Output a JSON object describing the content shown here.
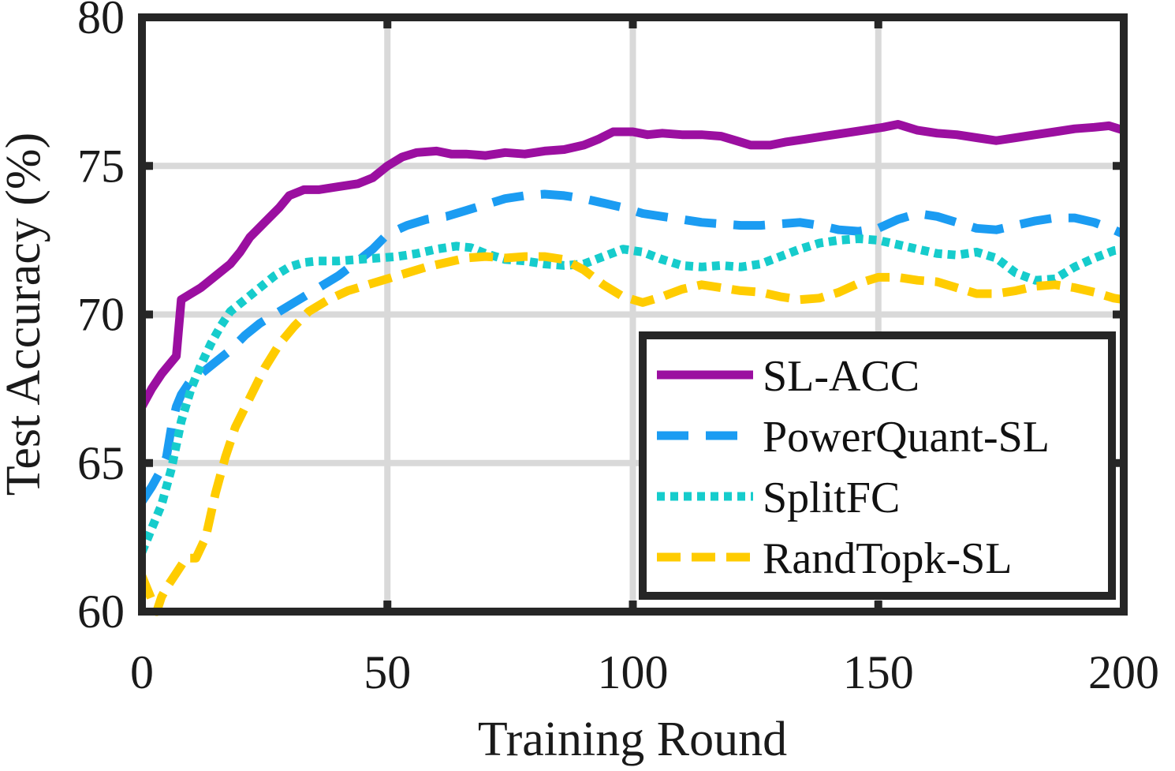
{
  "chart_data": {
    "type": "line",
    "title": "",
    "xlabel": "Training Round",
    "ylabel": "Test Accuracy (%)",
    "xlim": [
      0,
      200
    ],
    "ylim": [
      60,
      80
    ],
    "xticks": [
      0,
      50,
      100,
      150,
      200
    ],
    "yticks": [
      60,
      65,
      70,
      75,
      80
    ],
    "xtick_labels": [
      "0",
      "50",
      "100",
      "150",
      "200"
    ],
    "ytick_labels": [
      "60",
      "65",
      "70",
      "75",
      "80"
    ],
    "grid": true,
    "legend_position": "lower-right",
    "series": [
      {
        "name": "SL-ACC",
        "color": "#9b0fa0",
        "style": "solid",
        "points": [
          [
            0,
            66.9
          ],
          [
            2,
            67.5
          ],
          [
            4,
            68.0
          ],
          [
            6,
            68.4
          ],
          [
            7,
            68.6
          ],
          [
            8,
            70.5
          ],
          [
            10,
            70.7
          ],
          [
            12,
            70.9
          ],
          [
            15,
            71.3
          ],
          [
            18,
            71.7
          ],
          [
            20,
            72.1
          ],
          [
            22,
            72.6
          ],
          [
            25,
            73.1
          ],
          [
            28,
            73.6
          ],
          [
            30,
            74.0
          ],
          [
            33,
            74.2
          ],
          [
            36,
            74.2
          ],
          [
            40,
            74.3
          ],
          [
            44,
            74.4
          ],
          [
            47,
            74.6
          ],
          [
            50,
            75.0
          ],
          [
            53,
            75.3
          ],
          [
            56,
            75.45
          ],
          [
            60,
            75.5
          ],
          [
            63,
            75.4
          ],
          [
            66,
            75.4
          ],
          [
            70,
            75.35
          ],
          [
            74,
            75.45
          ],
          [
            78,
            75.4
          ],
          [
            82,
            75.5
          ],
          [
            86,
            75.55
          ],
          [
            90,
            75.7
          ],
          [
            93,
            75.9
          ],
          [
            96,
            76.15
          ],
          [
            100,
            76.15
          ],
          [
            103,
            76.05
          ],
          [
            106,
            76.1
          ],
          [
            110,
            76.05
          ],
          [
            114,
            76.05
          ],
          [
            118,
            76.0
          ],
          [
            121,
            75.85
          ],
          [
            124,
            75.7
          ],
          [
            128,
            75.7
          ],
          [
            131,
            75.8
          ],
          [
            135,
            75.9
          ],
          [
            139,
            76.0
          ],
          [
            143,
            76.1
          ],
          [
            147,
            76.2
          ],
          [
            151,
            76.3
          ],
          [
            154,
            76.4
          ],
          [
            158,
            76.2
          ],
          [
            162,
            76.1
          ],
          [
            166,
            76.05
          ],
          [
            170,
            75.95
          ],
          [
            174,
            75.85
          ],
          [
            178,
            75.95
          ],
          [
            182,
            76.05
          ],
          [
            186,
            76.15
          ],
          [
            190,
            76.25
          ],
          [
            194,
            76.3
          ],
          [
            197,
            76.35
          ],
          [
            200,
            76.2
          ]
        ]
      },
      {
        "name": "PowerQuant-SL",
        "color": "#1b9cf2",
        "style": "dashed",
        "points": [
          [
            0,
            63.7
          ],
          [
            2,
            64.2
          ],
          [
            4,
            64.8
          ],
          [
            5,
            65.2
          ],
          [
            6,
            66.2
          ],
          [
            7,
            66.9
          ],
          [
            8,
            67.3
          ],
          [
            10,
            67.8
          ],
          [
            12,
            68.0
          ],
          [
            15,
            68.4
          ],
          [
            18,
            68.8
          ],
          [
            21,
            69.3
          ],
          [
            24,
            69.7
          ],
          [
            28,
            70.1
          ],
          [
            32,
            70.5
          ],
          [
            36,
            70.9
          ],
          [
            40,
            71.3
          ],
          [
            44,
            71.8
          ],
          [
            47,
            72.2
          ],
          [
            50,
            72.7
          ],
          [
            54,
            73.0
          ],
          [
            58,
            73.2
          ],
          [
            62,
            73.3
          ],
          [
            66,
            73.5
          ],
          [
            70,
            73.7
          ],
          [
            74,
            73.9
          ],
          [
            78,
            74.0
          ],
          [
            82,
            74.05
          ],
          [
            86,
            74.0
          ],
          [
            90,
            73.9
          ],
          [
            94,
            73.75
          ],
          [
            98,
            73.6
          ],
          [
            102,
            73.4
          ],
          [
            106,
            73.3
          ],
          [
            110,
            73.2
          ],
          [
            114,
            73.1
          ],
          [
            118,
            73.05
          ],
          [
            122,
            73.0
          ],
          [
            126,
            73.0
          ],
          [
            130,
            73.05
          ],
          [
            134,
            73.1
          ],
          [
            138,
            73.0
          ],
          [
            142,
            72.85
          ],
          [
            146,
            72.8
          ],
          [
            150,
            72.9
          ],
          [
            154,
            73.2
          ],
          [
            158,
            73.4
          ],
          [
            162,
            73.3
          ],
          [
            166,
            73.1
          ],
          [
            170,
            72.9
          ],
          [
            174,
            72.85
          ],
          [
            178,
            73.0
          ],
          [
            182,
            73.15
          ],
          [
            186,
            73.25
          ],
          [
            190,
            73.25
          ],
          [
            194,
            73.1
          ],
          [
            198,
            72.85
          ],
          [
            200,
            72.7
          ]
        ]
      },
      {
        "name": "SplitFC",
        "color": "#16cccc",
        "style": "dotted",
        "points": [
          [
            0,
            62.0
          ],
          [
            2,
            62.8
          ],
          [
            4,
            63.6
          ],
          [
            6,
            64.8
          ],
          [
            8,
            66.4
          ],
          [
            10,
            67.5
          ],
          [
            12,
            68.3
          ],
          [
            14,
            69.0
          ],
          [
            16,
            69.6
          ],
          [
            18,
            70.1
          ],
          [
            21,
            70.5
          ],
          [
            24,
            70.9
          ],
          [
            27,
            71.3
          ],
          [
            30,
            71.6
          ],
          [
            33,
            71.75
          ],
          [
            36,
            71.8
          ],
          [
            40,
            71.8
          ],
          [
            44,
            71.85
          ],
          [
            48,
            71.9
          ],
          [
            52,
            71.95
          ],
          [
            56,
            72.05
          ],
          [
            60,
            72.2
          ],
          [
            64,
            72.3
          ],
          [
            67,
            72.25
          ],
          [
            70,
            72.05
          ],
          [
            74,
            71.85
          ],
          [
            78,
            71.8
          ],
          [
            82,
            71.7
          ],
          [
            86,
            71.65
          ],
          [
            90,
            71.7
          ],
          [
            94,
            71.95
          ],
          [
            98,
            72.2
          ],
          [
            102,
            72.1
          ],
          [
            106,
            71.85
          ],
          [
            110,
            71.65
          ],
          [
            114,
            71.6
          ],
          [
            118,
            71.65
          ],
          [
            122,
            71.6
          ],
          [
            126,
            71.7
          ],
          [
            130,
            71.95
          ],
          [
            134,
            72.2
          ],
          [
            138,
            72.4
          ],
          [
            142,
            72.5
          ],
          [
            146,
            72.55
          ],
          [
            150,
            72.5
          ],
          [
            154,
            72.35
          ],
          [
            158,
            72.2
          ],
          [
            162,
            72.05
          ],
          [
            166,
            72.0
          ],
          [
            170,
            72.1
          ],
          [
            174,
            71.9
          ],
          [
            178,
            71.4
          ],
          [
            182,
            71.15
          ],
          [
            186,
            71.2
          ],
          [
            190,
            71.6
          ],
          [
            194,
            71.9
          ],
          [
            198,
            72.15
          ],
          [
            200,
            72.2
          ]
        ]
      },
      {
        "name": "RandTopk-SL",
        "color": "#ffcc00",
        "style": "dashed",
        "points": [
          [
            0,
            61.2
          ],
          [
            2,
            60.4
          ],
          [
            3,
            60.0
          ],
          [
            4,
            60.5
          ],
          [
            5,
            60.8
          ],
          [
            7,
            61.3
          ],
          [
            9,
            61.8
          ],
          [
            11,
            61.8
          ],
          [
            13,
            62.5
          ],
          [
            15,
            64.0
          ],
          [
            17,
            65.2
          ],
          [
            19,
            66.2
          ],
          [
            22,
            67.2
          ],
          [
            25,
            68.2
          ],
          [
            28,
            69.0
          ],
          [
            31,
            69.6
          ],
          [
            34,
            70.1
          ],
          [
            38,
            70.5
          ],
          [
            42,
            70.8
          ],
          [
            46,
            71.0
          ],
          [
            50,
            71.2
          ],
          [
            54,
            71.4
          ],
          [
            58,
            71.6
          ],
          [
            62,
            71.75
          ],
          [
            66,
            71.9
          ],
          [
            70,
            71.95
          ],
          [
            74,
            71.9
          ],
          [
            78,
            71.95
          ],
          [
            82,
            71.95
          ],
          [
            86,
            71.85
          ],
          [
            90,
            71.5
          ],
          [
            94,
            71.0
          ],
          [
            98,
            70.6
          ],
          [
            102,
            70.4
          ],
          [
            106,
            70.6
          ],
          [
            110,
            70.85
          ],
          [
            114,
            71.0
          ],
          [
            118,
            70.9
          ],
          [
            122,
            70.8
          ],
          [
            126,
            70.75
          ],
          [
            130,
            70.6
          ],
          [
            134,
            70.5
          ],
          [
            138,
            70.55
          ],
          [
            142,
            70.75
          ],
          [
            146,
            71.05
          ],
          [
            150,
            71.25
          ],
          [
            154,
            71.25
          ],
          [
            158,
            71.15
          ],
          [
            162,
            71.1
          ],
          [
            166,
            70.9
          ],
          [
            170,
            70.7
          ],
          [
            174,
            70.7
          ],
          [
            178,
            70.8
          ],
          [
            182,
            70.95
          ],
          [
            186,
            71.0
          ],
          [
            190,
            70.9
          ],
          [
            194,
            70.75
          ],
          [
            198,
            70.55
          ],
          [
            200,
            70.5
          ]
        ]
      }
    ]
  }
}
